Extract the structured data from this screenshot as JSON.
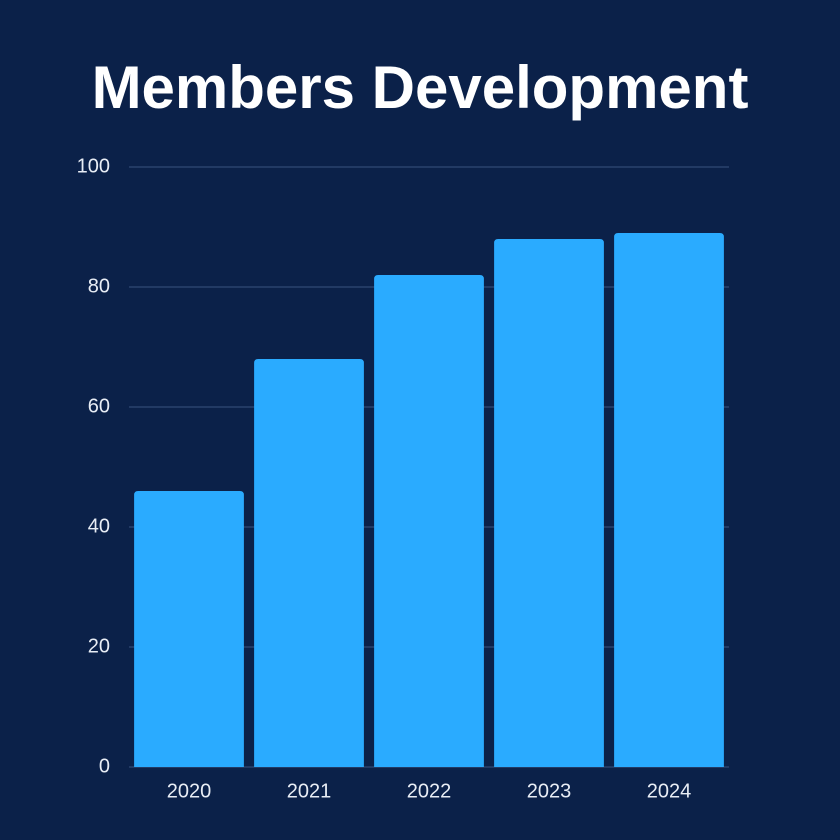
{
  "chart_data": {
    "type": "bar",
    "title": "Members Development",
    "categories": [
      "2020",
      "2021",
      "2022",
      "2023",
      "2024"
    ],
    "values": [
      46,
      68,
      82,
      88,
      89
    ],
    "color": "#2aabff",
    "ylim": [
      0,
      100
    ],
    "yticks": [
      0,
      20,
      40,
      60,
      80,
      100
    ],
    "grid": true
  }
}
